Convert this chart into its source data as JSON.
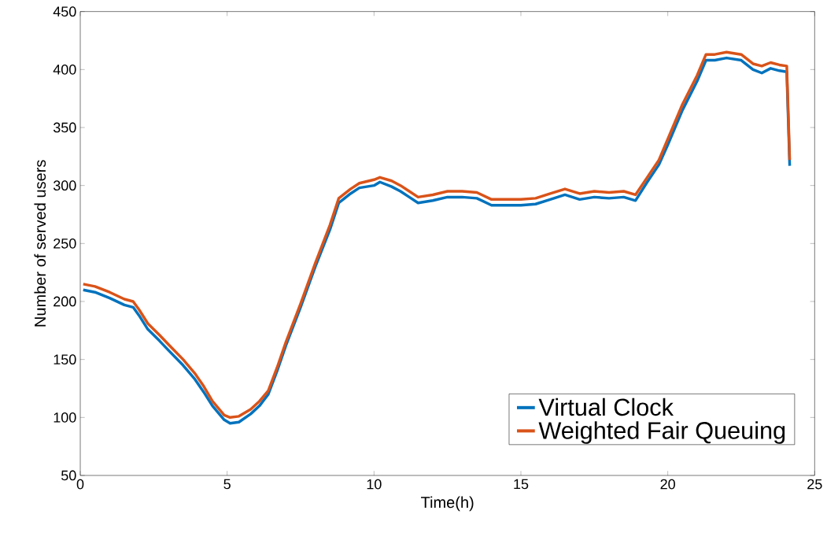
{
  "chart_data": {
    "type": "line",
    "xlabel": "Time(h)",
    "ylabel": "Number of served users",
    "xlim": [
      0,
      25
    ],
    "ylim": [
      50,
      450
    ],
    "xticks": [
      0,
      5,
      10,
      15,
      20,
      25
    ],
    "yticks": [
      50,
      100,
      150,
      200,
      250,
      300,
      350,
      400,
      450
    ],
    "grid": false,
    "legend": "bottom right",
    "marker": "none",
    "line_style": "solid",
    "x": [
      0.1,
      0.5,
      1.0,
      1.5,
      1.8,
      2.0,
      2.3,
      2.7,
      3.0,
      3.5,
      3.9,
      4.2,
      4.5,
      4.9,
      5.1,
      5.4,
      5.8,
      6.1,
      6.4,
      6.7,
      7.0,
      7.5,
      8.0,
      8.5,
      8.8,
      9.2,
      9.5,
      10.0,
      10.2,
      10.6,
      10.9,
      11.2,
      11.5,
      12.0,
      12.5,
      13.0,
      13.5,
      14.0,
      14.5,
      15.0,
      15.5,
      16.0,
      16.5,
      17.0,
      17.5,
      18.0,
      18.5,
      18.9,
      19.3,
      19.7,
      20.0,
      20.5,
      21.0,
      21.3,
      21.6,
      22.0,
      22.5,
      22.9,
      23.2,
      23.5,
      23.8,
      24.05,
      24.15
    ],
    "series": [
      {
        "name": "Virtual Clock",
        "color": "#0072bd",
        "values": [
          210,
          208,
          203,
          197,
          195,
          188,
          176,
          166,
          158,
          145,
          133,
          122,
          110,
          98,
          95,
          96,
          103,
          110,
          120,
          140,
          162,
          195,
          230,
          262,
          285,
          293,
          298,
          300,
          303,
          299,
          295,
          290,
          285,
          287,
          290,
          290,
          289,
          283,
          283,
          283,
          284,
          288,
          292,
          288,
          290,
          289,
          290,
          287,
          303,
          318,
          335,
          365,
          390,
          408,
          408,
          410,
          408,
          400,
          397,
          401,
          399,
          398,
          317
        ]
      },
      {
        "name": "Weighted Fair Queuing",
        "color": "#d95319",
        "values": [
          215,
          213,
          208,
          202,
          200,
          193,
          181,
          171,
          163,
          150,
          138,
          127,
          114,
          102,
          100,
          101,
          107,
          114,
          123,
          143,
          165,
          198,
          233,
          266,
          289,
          297,
          302,
          305,
          307,
          304,
          300,
          295,
          290,
          292,
          295,
          295,
          294,
          288,
          288,
          288,
          289,
          293,
          297,
          293,
          295,
          294,
          295,
          292,
          307,
          322,
          340,
          370,
          395,
          413,
          413,
          415,
          413,
          405,
          403,
          406,
          404,
          403,
          322
        ]
      }
    ]
  }
}
